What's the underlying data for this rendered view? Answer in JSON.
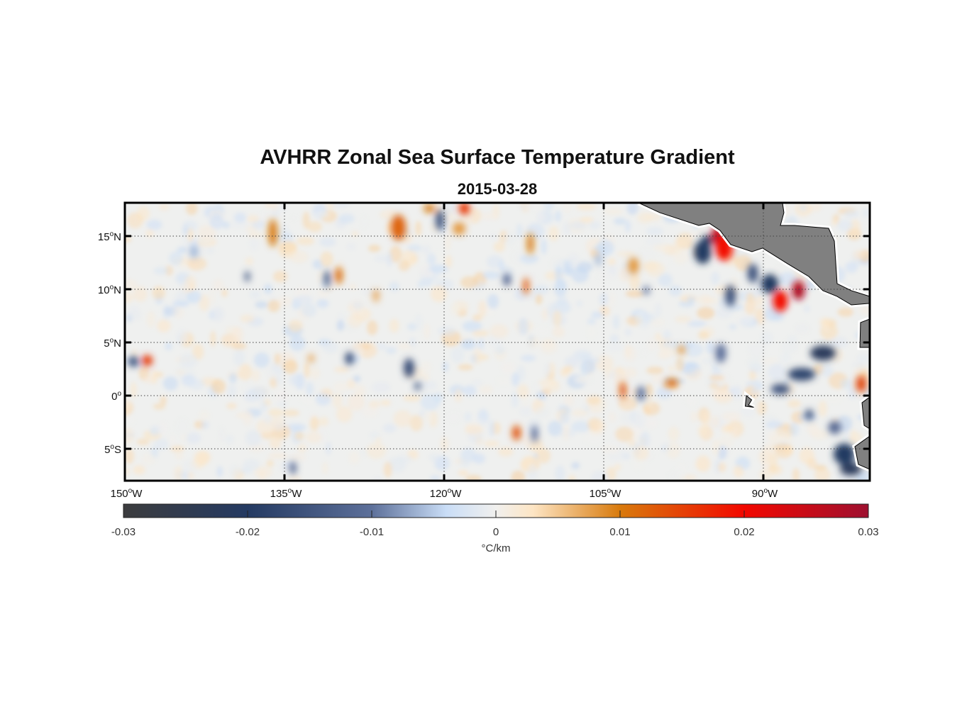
{
  "title": "AVHRR Zonal Sea Surface Temperature Gradient",
  "subtitle": "2015-03-28",
  "chart_data": {
    "type": "heatmap",
    "projection": "equirectangular",
    "lon_range": [
      -150,
      -80
    ],
    "lat_range": [
      -8.0,
      18.13
    ],
    "grid": true,
    "lon_ticks": [
      {
        "value": -150,
        "label": "150",
        "sup": "o",
        "hemi": "W"
      },
      {
        "value": -135,
        "label": "135",
        "sup": "o",
        "hemi": "W"
      },
      {
        "value": -120,
        "label": "120",
        "sup": "o",
        "hemi": "W"
      },
      {
        "value": -105,
        "label": "105",
        "sup": "o",
        "hemi": "W"
      },
      {
        "value": -90,
        "label": "90",
        "sup": "o",
        "hemi": "W"
      }
    ],
    "lat_ticks": [
      {
        "value": 15,
        "label": "15",
        "sup": "o",
        "hemi": "N"
      },
      {
        "value": 10,
        "label": "10",
        "sup": "o",
        "hemi": "N"
      },
      {
        "value": 5,
        "label": "5",
        "sup": "o",
        "hemi": "N"
      },
      {
        "value": 0,
        "label": "0",
        "sup": "o",
        "hemi": ""
      },
      {
        "value": -5,
        "label": "5",
        "sup": "o",
        "hemi": "S"
      }
    ],
    "colorbar": {
      "range": [
        -0.03,
        0.03
      ],
      "ticks": [
        "-0.03",
        "-0.02",
        "-0.01",
        "0",
        "0.01",
        "0.02",
        "0.03"
      ],
      "tick_values": [
        -0.03,
        -0.02,
        -0.01,
        0,
        0.01,
        0.02,
        0.03
      ],
      "label": "°C/km",
      "stops": [
        {
          "v": -0.03,
          "c": "#3c3c3e"
        },
        {
          "v": -0.02,
          "c": "#243a62"
        },
        {
          "v": -0.01,
          "c": "#5d709a"
        },
        {
          "v": -0.004,
          "c": "#c9ddf6"
        },
        {
          "v": 0,
          "c": "#f1f0ee"
        },
        {
          "v": 0.003,
          "c": "#fde5c4"
        },
        {
          "v": 0.01,
          "c": "#d87a0c"
        },
        {
          "v": 0.02,
          "c": "#f20800"
        },
        {
          "v": 0.03,
          "c": "#9e1030"
        }
      ]
    },
    "land_color": "#808080",
    "features": [
      {
        "lon": -94.3,
        "lat": 15.0,
        "value": 0.026,
        "rlon": 0.6,
        "rlat": 0.9
      },
      {
        "lon": -93.7,
        "lat": 13.9,
        "value": 0.02,
        "rlon": 0.8,
        "rlat": 1.2
      },
      {
        "lon": -95.7,
        "lat": 13.5,
        "value": -0.02,
        "rlon": 0.8,
        "rlat": 1.1
      },
      {
        "lon": -95.3,
        "lat": 14.6,
        "value": -0.02,
        "rlon": 0.5,
        "rlat": 0.5
      },
      {
        "lon": -86.7,
        "lat": 9.9,
        "value": 0.028,
        "rlon": 0.6,
        "rlat": 0.9
      },
      {
        "lon": -88.4,
        "lat": 8.9,
        "value": 0.02,
        "rlon": 0.7,
        "rlat": 1.0
      },
      {
        "lon": -89.4,
        "lat": 10.5,
        "value": -0.02,
        "rlon": 0.8,
        "rlat": 0.9
      },
      {
        "lon": -91.0,
        "lat": 11.5,
        "value": -0.015,
        "rlon": 0.5,
        "rlat": 0.9
      },
      {
        "lon": -93.1,
        "lat": 9.4,
        "value": -0.015,
        "rlon": 0.5,
        "rlat": 1.0
      },
      {
        "lon": -84.4,
        "lat": 4.0,
        "value": -0.022,
        "rlon": 1.2,
        "rlat": 0.7
      },
      {
        "lon": -86.4,
        "lat": 2.0,
        "value": -0.018,
        "rlon": 1.3,
        "rlat": 0.6
      },
      {
        "lon": -88.4,
        "lat": 0.6,
        "value": -0.015,
        "rlon": 0.9,
        "rlat": 0.5
      },
      {
        "lon": -80.8,
        "lat": 1.1,
        "value": 0.014,
        "rlon": 0.5,
        "rlat": 0.8
      },
      {
        "lon": -82.4,
        "lat": -5.5,
        "value": -0.02,
        "rlon": 1.0,
        "rlat": 1.0
      },
      {
        "lon": -81.8,
        "lat": -6.9,
        "value": -0.022,
        "rlon": 1.0,
        "rlat": 0.6
      },
      {
        "lon": -85.7,
        "lat": -1.8,
        "value": -0.015,
        "rlon": 0.4,
        "rlat": 0.5
      },
      {
        "lon": -83.3,
        "lat": -3.0,
        "value": -0.012,
        "rlon": 0.6,
        "rlat": 0.6
      },
      {
        "lon": -124.3,
        "lat": 15.8,
        "value": 0.012,
        "rlon": 0.7,
        "rlat": 1.2
      },
      {
        "lon": -118.1,
        "lat": 17.6,
        "value": 0.016,
        "rlon": 0.5,
        "rlat": 0.6
      },
      {
        "lon": -121.4,
        "lat": 17.6,
        "value": 0.01,
        "rlon": 0.5,
        "rlat": 0.4
      },
      {
        "lon": -120.4,
        "lat": 16.5,
        "value": -0.015,
        "rlon": 0.4,
        "rlat": 1.0
      },
      {
        "lon": -118.6,
        "lat": 15.7,
        "value": 0.008,
        "rlon": 0.6,
        "rlat": 0.6
      },
      {
        "lon": -136.1,
        "lat": 15.3,
        "value": 0.01,
        "rlon": 0.4,
        "rlat": 1.3
      },
      {
        "lon": -147.9,
        "lat": 3.3,
        "value": 0.016,
        "rlon": 0.5,
        "rlat": 0.5
      },
      {
        "lon": -149.2,
        "lat": 3.2,
        "value": -0.015,
        "rlon": 0.5,
        "rlat": 0.5
      },
      {
        "lon": -138.5,
        "lat": 11.2,
        "value": -0.013,
        "rlon": 0.25,
        "rlat": 0.5
      },
      {
        "lon": -131.0,
        "lat": 11.0,
        "value": -0.016,
        "rlon": 0.25,
        "rlat": 0.8
      },
      {
        "lon": -129.9,
        "lat": 11.3,
        "value": 0.011,
        "rlon": 0.35,
        "rlat": 0.8
      },
      {
        "lon": -128.9,
        "lat": 3.5,
        "value": -0.016,
        "rlon": 0.4,
        "rlat": 0.6
      },
      {
        "lon": -123.3,
        "lat": 2.6,
        "value": -0.016,
        "rlon": 0.5,
        "rlat": 0.9
      },
      {
        "lon": -122.5,
        "lat": 0.9,
        "value": -0.013,
        "rlon": 0.3,
        "rlat": 0.4
      },
      {
        "lon": -112.3,
        "lat": 10.3,
        "value": 0.013,
        "rlon": 0.25,
        "rlat": 0.8
      },
      {
        "lon": -114.1,
        "lat": 10.9,
        "value": -0.012,
        "rlon": 0.35,
        "rlat": 0.6
      },
      {
        "lon": -111.9,
        "lat": 14.3,
        "value": 0.01,
        "rlon": 0.3,
        "rlat": 1.0
      },
      {
        "lon": -113.2,
        "lat": -3.5,
        "value": 0.013,
        "rlon": 0.4,
        "rlat": 0.7
      },
      {
        "lon": -111.5,
        "lat": -3.6,
        "value": -0.01,
        "rlon": 0.3,
        "rlat": 0.8
      },
      {
        "lon": -103.2,
        "lat": 0.5,
        "value": 0.013,
        "rlon": 0.3,
        "rlat": 0.8
      },
      {
        "lon": -101.5,
        "lat": 0.2,
        "value": -0.01,
        "rlon": 0.4,
        "rlat": 0.7
      },
      {
        "lon": -98.6,
        "lat": 1.2,
        "value": 0.011,
        "rlon": 0.6,
        "rlat": 0.4
      },
      {
        "lon": -97.7,
        "lat": 4.3,
        "value": 0.009,
        "rlon": 0.3,
        "rlat": 0.4
      },
      {
        "lon": -101.0,
        "lat": 9.9,
        "value": -0.01,
        "rlon": 0.3,
        "rlat": 0.4
      },
      {
        "lon": -134.2,
        "lat": -6.8,
        "value": -0.012,
        "rlon": 0.3,
        "rlat": 0.6
      },
      {
        "lon": -126.4,
        "lat": 9.4,
        "value": 0.007,
        "rlon": 0.3,
        "rlat": 0.6
      },
      {
        "lon": -102.2,
        "lat": 12.2,
        "value": 0.008,
        "rlon": 0.5,
        "rlat": 0.8
      },
      {
        "lon": -132.5,
        "lat": 3.5,
        "value": 0.007,
        "rlon": 0.3,
        "rlat": 0.4
      },
      {
        "lon": -143.5,
        "lat": 13.5,
        "value": -0.006,
        "rlon": 0.4,
        "rlat": 0.6
      },
      {
        "lon": -105.5,
        "lat": 12.8,
        "value": -0.006,
        "rlon": 0.3,
        "rlat": 0.6
      },
      {
        "lon": -94.0,
        "lat": 4.0,
        "value": -0.01,
        "rlon": 0.5,
        "rlat": 0.9
      }
    ],
    "land": [
      {
        "name": "central-america",
        "coords": [
          [
            -101.73,
            18.13
          ],
          [
            -99.73,
            17.2
          ],
          [
            -96.07,
            16.0
          ],
          [
            -95.07,
            16.2
          ],
          [
            -94.07,
            15.53
          ],
          [
            -93.07,
            14.2
          ],
          [
            -91.07,
            13.53
          ],
          [
            -90.07,
            13.87
          ],
          [
            -87.73,
            12.4
          ],
          [
            -85.73,
            11.2
          ],
          [
            -84.4,
            9.87
          ],
          [
            -83.07,
            9.33
          ],
          [
            -81.73,
            8.53
          ],
          [
            -80.0,
            8.67
          ],
          [
            -80.0,
            9.33
          ],
          [
            -81.73,
            9.87
          ],
          [
            -83.07,
            10.53
          ],
          [
            -83.33,
            14.53
          ],
          [
            -83.87,
            15.73
          ],
          [
            -87.07,
            16.0
          ],
          [
            -88.4,
            16.0
          ],
          [
            -88.07,
            17.2
          ],
          [
            -88.2,
            18.13
          ]
        ]
      },
      {
        "name": "colombia",
        "coords": [
          [
            -80.0,
            7.2
          ],
          [
            -80.87,
            6.87
          ],
          [
            -80.93,
            4.53
          ],
          [
            -80.0,
            4.53
          ]
        ]
      },
      {
        "name": "ecuador",
        "coords": [
          [
            -80.0,
            -0.13
          ],
          [
            -80.73,
            -0.67
          ],
          [
            -80.53,
            -2.8
          ],
          [
            -80.0,
            -3.13
          ]
        ]
      },
      {
        "name": "peru",
        "coords": [
          [
            -80.0,
            -3.8
          ],
          [
            -81.4,
            -4.8
          ],
          [
            -81.07,
            -6.47
          ],
          [
            -80.0,
            -6.93
          ]
        ]
      },
      {
        "name": "galapagos",
        "coords": [
          [
            -91.6,
            -0.0
          ],
          [
            -91.1,
            -0.4
          ],
          [
            -91.4,
            -0.9
          ],
          [
            -90.9,
            -1.1
          ],
          [
            -91.7,
            -1.0
          ]
        ]
      }
    ]
  }
}
